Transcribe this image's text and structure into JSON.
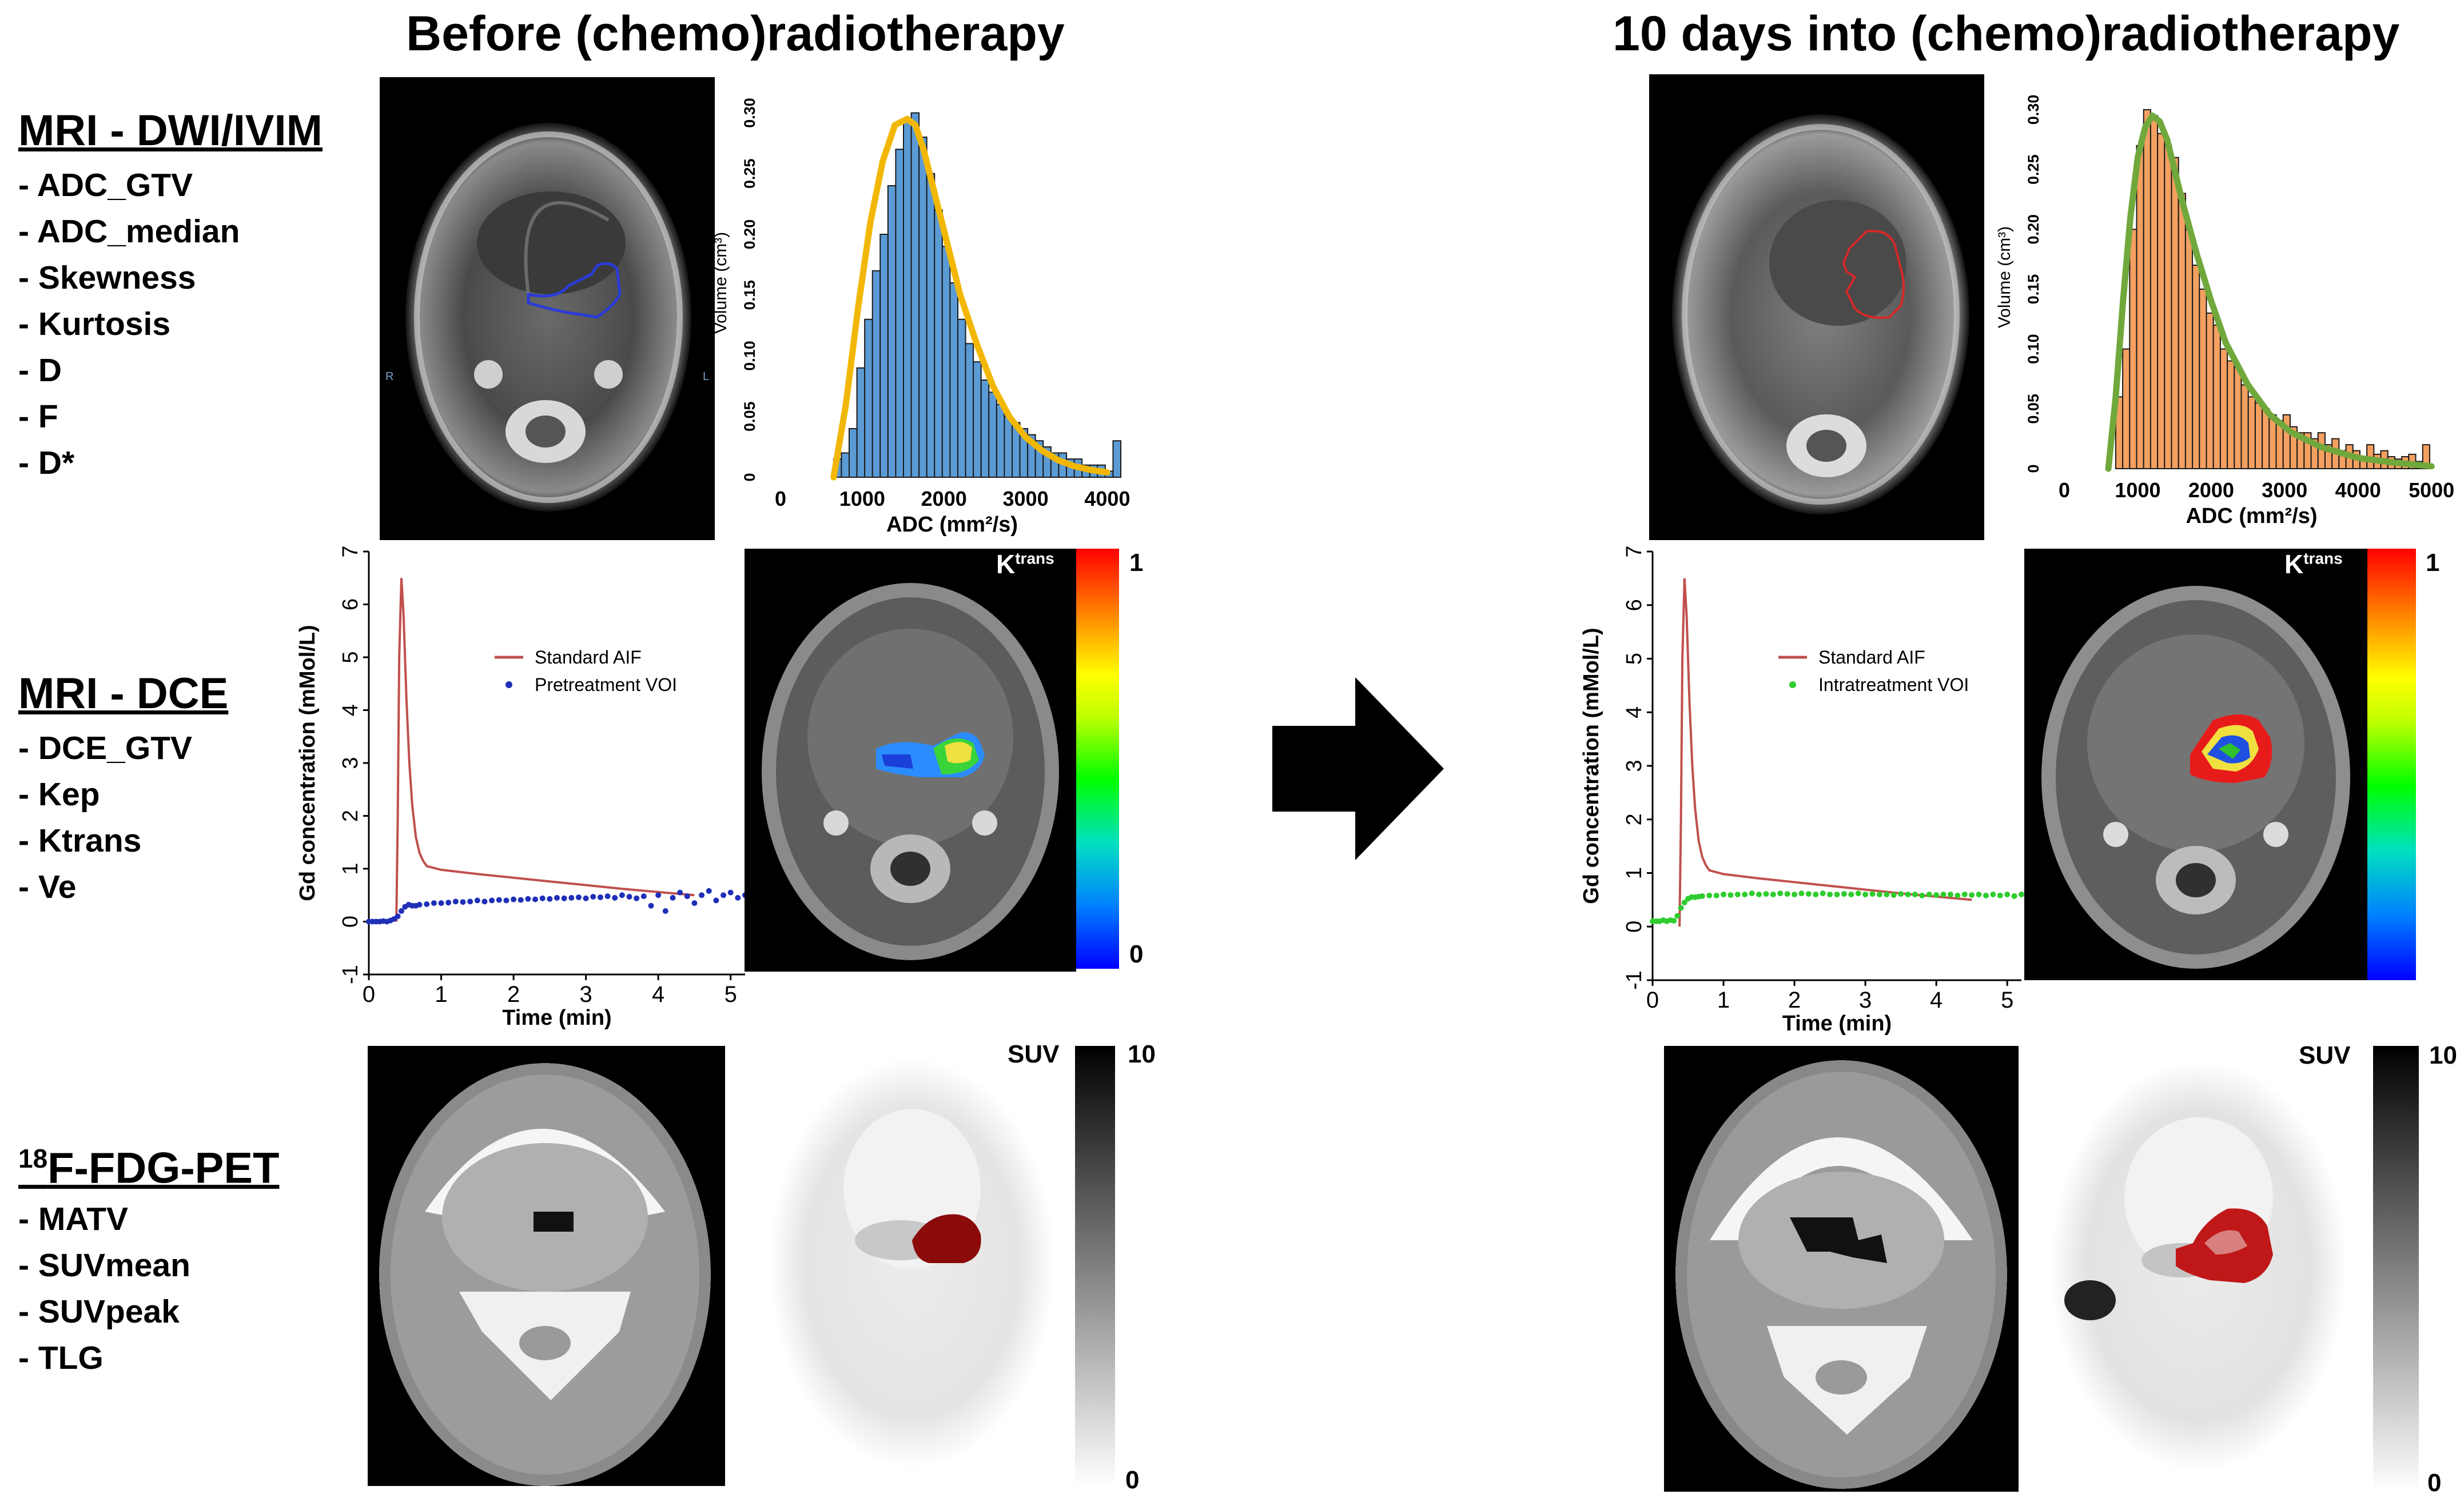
{
  "titles": {
    "before": "Before (chemo)radiotherapy",
    "during": "10 days into (chemo)radiotherapy"
  },
  "sections": {
    "dwi": {
      "title": "MRI - DWI/IVIM",
      "items": [
        "ADC_GTV",
        "ADC_median",
        "Skewness",
        "Kurtosis",
        "D",
        "F",
        "D*"
      ]
    },
    "dce": {
      "title": "MRI - DCE",
      "items": [
        "DCE_GTV",
        "Kep",
        "Ktrans",
        "Ve"
      ]
    },
    "pet": {
      "title_sup": "18",
      "title_main": "F-FDG-PET",
      "items": [
        "MATV",
        "SUVmean",
        "SUVpeak",
        "TLG"
      ]
    }
  },
  "mri_labels": {
    "left": "R",
    "right": "L"
  },
  "ktrans": {
    "label_main": "K",
    "label_sup": "trans",
    "scale_max": "1",
    "scale_min": "0"
  },
  "suv": {
    "label": "SUV",
    "scale_max": "10",
    "scale_min": "0"
  },
  "colors": {
    "before_contour": "#2a3cd6",
    "during_contour": "#d62828",
    "pet_lesion": "#8b0a0a",
    "pet_lesion_during": "#c01818"
  },
  "chart_data": [
    {
      "id": "adc_hist_before",
      "type": "bar",
      "xlabel": "ADC (mm²/s)",
      "ylabel": "Volume (cm³)",
      "xlim": [
        0,
        4200
      ],
      "ylim": [
        0,
        0.32
      ],
      "xticks": [
        0,
        1000,
        2000,
        3000,
        4000
      ],
      "yticks": [
        0,
        0.05,
        0.1,
        0.15,
        0.2,
        0.25,
        0.3
      ],
      "ytick_labels": [
        "0",
        "0.05",
        "0.10",
        "0.15",
        "0.20",
        "0.25",
        "0.30"
      ],
      "bar_color": "#5b9bd5",
      "bin_width": 95,
      "x": [
        650,
        745,
        840,
        935,
        1030,
        1125,
        1220,
        1315,
        1410,
        1505,
        1600,
        1695,
        1790,
        1885,
        1980,
        2075,
        2170,
        2265,
        2360,
        2455,
        2550,
        2645,
        2740,
        2835,
        2930,
        3025,
        3120,
        3215,
        3310,
        3405,
        3500,
        3595,
        3690,
        3785,
        3880,
        3975,
        4070
      ],
      "values": [
        0.015,
        0.02,
        0.04,
        0.09,
        0.13,
        0.17,
        0.2,
        0.24,
        0.27,
        0.295,
        0.3,
        0.28,
        0.25,
        0.22,
        0.19,
        0.16,
        0.13,
        0.11,
        0.095,
        0.08,
        0.07,
        0.06,
        0.05,
        0.045,
        0.04,
        0.035,
        0.03,
        0.025,
        0.02,
        0.02,
        0.015,
        0.015,
        0.01,
        0.01,
        0.01,
        0.005,
        0.03
      ],
      "fit": {
        "name": "fit",
        "color": "#f2b705",
        "x": [
          650,
          800,
          950,
          1100,
          1250,
          1400,
          1550,
          1650,
          1750,
          1900,
          2050,
          2200,
          2400,
          2600,
          2800,
          3000,
          3200,
          3400,
          3600,
          3800,
          4000
        ],
        "y": [
          0.0,
          0.06,
          0.14,
          0.21,
          0.26,
          0.29,
          0.295,
          0.29,
          0.27,
          0.23,
          0.19,
          0.15,
          0.11,
          0.075,
          0.05,
          0.033,
          0.022,
          0.014,
          0.009,
          0.006,
          0.004
        ]
      }
    },
    {
      "id": "adc_hist_during",
      "type": "bar",
      "xlabel": "ADC (mm²/s)",
      "ylabel": "Volume (cm³)",
      "xlim": [
        0,
        5100
      ],
      "ylim": [
        0,
        0.32
      ],
      "xticks": [
        0,
        1000,
        2000,
        3000,
        4000,
        5000
      ],
      "yticks": [
        0,
        0.05,
        0.1,
        0.15,
        0.2,
        0.25,
        0.3
      ],
      "ytick_labels": [
        "0",
        "0.05",
        "0.10",
        "0.15",
        "0.20",
        "0.25",
        "0.30"
      ],
      "bar_color": "#f4a060",
      "bin_width": 95,
      "x": [
        700,
        795,
        890,
        985,
        1080,
        1175,
        1270,
        1365,
        1460,
        1555,
        1650,
        1745,
        1840,
        1935,
        2030,
        2125,
        2220,
        2315,
        2410,
        2505,
        2600,
        2695,
        2790,
        2885,
        2980,
        3075,
        3170,
        3265,
        3360,
        3455,
        3550,
        3645,
        3740,
        3835,
        3930,
        4025,
        4120,
        4215,
        4310,
        4405,
        4500,
        4595,
        4690,
        4785,
        4880
      ],
      "values": [
        0.06,
        0.1,
        0.2,
        0.27,
        0.3,
        0.295,
        0.28,
        0.27,
        0.26,
        0.23,
        0.2,
        0.17,
        0.15,
        0.13,
        0.12,
        0.1,
        0.09,
        0.085,
        0.07,
        0.06,
        0.055,
        0.05,
        0.045,
        0.04,
        0.045,
        0.035,
        0.03,
        0.03,
        0.025,
        0.03,
        0.02,
        0.025,
        0.015,
        0.02,
        0.015,
        0.01,
        0.02,
        0.012,
        0.015,
        0.01,
        0.008,
        0.01,
        0.012,
        0.006,
        0.02
      ],
      "fit": {
        "name": "fit",
        "color": "#70a83c",
        "x": [
          600,
          700,
          800,
          900,
          1000,
          1100,
          1200,
          1300,
          1400,
          1500,
          1600,
          1800,
          2000,
          2200,
          2500,
          2800,
          3100,
          3500,
          4000,
          4500,
          5000
        ],
        "y": [
          0.0,
          0.06,
          0.14,
          0.21,
          0.26,
          0.285,
          0.295,
          0.29,
          0.275,
          0.25,
          0.225,
          0.18,
          0.14,
          0.105,
          0.07,
          0.045,
          0.03,
          0.018,
          0.009,
          0.005,
          0.002
        ]
      }
    },
    {
      "id": "dce_before",
      "type": "line",
      "xlabel": "Time (min)",
      "ylabel": "Gd concentration (mMol/L)",
      "xlim": [
        0,
        5.2
      ],
      "ylim": [
        -1,
        7
      ],
      "xticks": [
        0,
        1,
        2,
        3,
        4,
        5
      ],
      "yticks": [
        -1,
        0,
        1,
        2,
        3,
        4,
        5,
        6,
        7
      ],
      "series": [
        {
          "name": "Standard AIF",
          "kind": "line",
          "color": "#c0504d",
          "x": [
            0.38,
            0.4,
            0.42,
            0.45,
            0.48,
            0.52,
            0.56,
            0.6,
            0.65,
            0.7,
            0.75,
            0.8,
            1.0,
            1.5,
            2.0,
            2.5,
            3.0,
            3.5,
            4.0,
            4.5
          ],
          "y": [
            0.0,
            2.0,
            5.0,
            6.5,
            5.8,
            4.2,
            3.0,
            2.2,
            1.6,
            1.3,
            1.15,
            1.05,
            0.98,
            0.9,
            0.83,
            0.76,
            0.69,
            0.62,
            0.56,
            0.5
          ]
        },
        {
          "name": "Pretreatment VOI",
          "kind": "scatter",
          "color": "#1f2fb8",
          "x": [
            0.0,
            0.05,
            0.1,
            0.15,
            0.2,
            0.25,
            0.3,
            0.35,
            0.4,
            0.45,
            0.5,
            0.55,
            0.6,
            0.65,
            0.7,
            0.8,
            0.9,
            1.0,
            1.1,
            1.2,
            1.3,
            1.4,
            1.5,
            1.6,
            1.7,
            1.8,
            1.9,
            2.0,
            2.1,
            2.2,
            2.3,
            2.4,
            2.5,
            2.6,
            2.7,
            2.8,
            2.9,
            3.0,
            3.1,
            3.2,
            3.3,
            3.4,
            3.5,
            3.6,
            3.7,
            3.8,
            3.9,
            4.0,
            4.1,
            4.2,
            4.3,
            4.4,
            4.5,
            4.6,
            4.7,
            4.8,
            4.9,
            5.0,
            5.1,
            5.2
          ],
          "y": [
            0.0,
            0.0,
            0.0,
            0.0,
            0.01,
            0.0,
            0.02,
            0.05,
            0.1,
            0.2,
            0.28,
            0.32,
            0.3,
            0.3,
            0.32,
            0.33,
            0.35,
            0.35,
            0.36,
            0.38,
            0.37,
            0.38,
            0.4,
            0.38,
            0.4,
            0.41,
            0.4,
            0.42,
            0.41,
            0.43,
            0.42,
            0.44,
            0.43,
            0.45,
            0.44,
            0.45,
            0.46,
            0.44,
            0.47,
            0.46,
            0.48,
            0.45,
            0.5,
            0.47,
            0.44,
            0.48,
            0.3,
            0.5,
            0.2,
            0.45,
            0.55,
            0.48,
            0.35,
            0.5,
            0.58,
            0.4,
            0.5,
            0.55,
            0.45,
            0.5
          ]
        }
      ]
    },
    {
      "id": "dce_during",
      "type": "line",
      "xlabel": "Time (min)",
      "ylabel": "Gd concentration (mMol/L)",
      "xlim": [
        0,
        5.2
      ],
      "ylim": [
        -1,
        7
      ],
      "xticks": [
        0,
        1,
        2,
        3,
        4,
        5
      ],
      "yticks": [
        -1,
        0,
        1,
        2,
        3,
        4,
        5,
        6,
        7
      ],
      "series": [
        {
          "name": "Standard AIF",
          "kind": "line",
          "color": "#c0504d",
          "x": [
            0.38,
            0.4,
            0.42,
            0.45,
            0.48,
            0.52,
            0.56,
            0.6,
            0.65,
            0.7,
            0.75,
            0.8,
            1.0,
            1.5,
            2.0,
            2.5,
            3.0,
            3.5,
            4.0,
            4.5
          ],
          "y": [
            0.0,
            2.0,
            5.0,
            6.5,
            5.8,
            4.2,
            3.0,
            2.2,
            1.6,
            1.3,
            1.15,
            1.05,
            0.98,
            0.9,
            0.83,
            0.76,
            0.69,
            0.62,
            0.56,
            0.5
          ]
        },
        {
          "name": "Intratreatment VOI",
          "kind": "scatter",
          "color": "#2ecc2e",
          "x": [
            0.0,
            0.05,
            0.1,
            0.15,
            0.2,
            0.25,
            0.3,
            0.35,
            0.4,
            0.45,
            0.5,
            0.55,
            0.6,
            0.65,
            0.7,
            0.8,
            0.9,
            1.0,
            1.1,
            1.2,
            1.3,
            1.4,
            1.5,
            1.6,
            1.7,
            1.8,
            1.9,
            2.0,
            2.1,
            2.2,
            2.3,
            2.4,
            2.5,
            2.6,
            2.7,
            2.8,
            2.9,
            3.0,
            3.1,
            3.2,
            3.3,
            3.4,
            3.5,
            3.6,
            3.7,
            3.8,
            3.9,
            4.0,
            4.1,
            4.2,
            4.3,
            4.4,
            4.5,
            4.6,
            4.7,
            4.8,
            4.9,
            5.0,
            5.1,
            5.2
          ],
          "y": [
            0.1,
            0.1,
            0.1,
            0.12,
            0.1,
            0.12,
            0.11,
            0.2,
            0.35,
            0.45,
            0.52,
            0.55,
            0.55,
            0.56,
            0.57,
            0.58,
            0.58,
            0.6,
            0.59,
            0.6,
            0.6,
            0.62,
            0.6,
            0.61,
            0.6,
            0.62,
            0.61,
            0.6,
            0.62,
            0.61,
            0.6,
            0.62,
            0.6,
            0.6,
            0.61,
            0.6,
            0.62,
            0.6,
            0.61,
            0.6,
            0.6,
            0.59,
            0.61,
            0.6,
            0.6,
            0.58,
            0.6,
            0.59,
            0.6,
            0.6,
            0.58,
            0.6,
            0.59,
            0.6,
            0.58,
            0.6,
            0.58,
            0.6,
            0.57,
            0.6
          ]
        }
      ]
    }
  ]
}
